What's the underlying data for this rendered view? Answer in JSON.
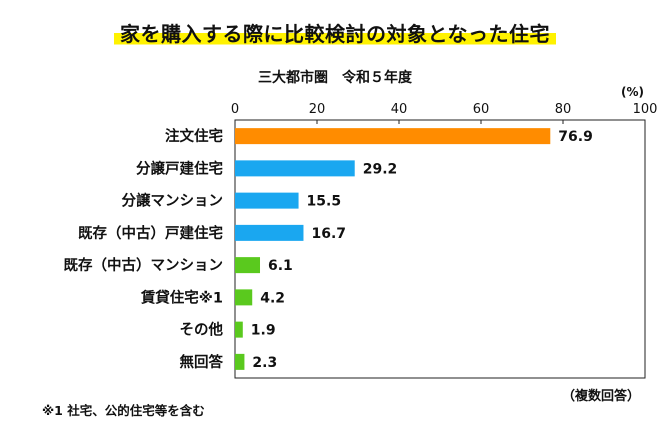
{
  "title": "家を購入する際に比較検討の対象となった住宅",
  "subtitle": "三大都市圏　令和５年度",
  "unit_label": "(%)",
  "footnote": "※1 社宅、公的住宅等を含む",
  "response_note": "（複数回答）",
  "colors": {
    "highlight": "#ff8c00",
    "new_housing": "#1aa7f0",
    "used_housing": "#5ac91e",
    "highlight_band": "#fff200"
  },
  "chart_data": {
    "type": "bar",
    "orientation": "horizontal",
    "title": "家を購入する際に比較検討の対象となった住宅",
    "subtitle": "三大都市圏　令和５年度",
    "xlim": [
      0,
      100
    ],
    "x_ticks": [
      0,
      20,
      40,
      60,
      80,
      100
    ],
    "grid": false,
    "categories": [
      "注文住宅",
      "分譲戸建住宅",
      "分譲マンション",
      "既存（中古）戸建住宅",
      "既存（中古）マンション",
      "賃貸住宅※1",
      "その他",
      "無回答"
    ],
    "values": [
      76.9,
      29.2,
      15.5,
      16.7,
      6.1,
      4.2,
      1.9,
      2.3
    ],
    "value_labels": [
      "76.9",
      "29.2",
      "15.5",
      "16.7",
      "6.1",
      "4.2",
      "1.9",
      "2.3"
    ],
    "bar_colors": [
      "#ff8c00",
      "#1aa7f0",
      "#1aa7f0",
      "#1aa7f0",
      "#5ac91e",
      "#5ac91e",
      "#5ac91e",
      "#5ac91e"
    ]
  }
}
